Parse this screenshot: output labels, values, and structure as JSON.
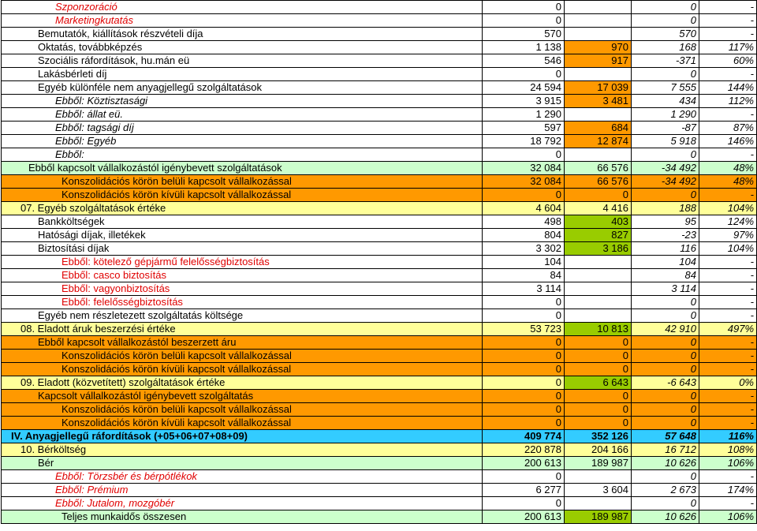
{
  "rows": [
    {
      "label": "Szponzoráció",
      "indent": 68,
      "lc": "red it",
      "rc": "",
      "v1": "0",
      "v2": "",
      "v3": "0",
      "v4": "-",
      "c2": ""
    },
    {
      "label": "Marketingkutatás",
      "indent": 68,
      "lc": "red it",
      "rc": "",
      "v1": "0",
      "v2": "",
      "v3": "0",
      "v4": "-",
      "c2": ""
    },
    {
      "label": "Bemutatók, kiállítások részvételi díja",
      "indent": 46,
      "lc": "",
      "rc": "",
      "v1": "570",
      "v2": "",
      "v3": "570",
      "v4": "-",
      "c2": ""
    },
    {
      "label": "Oktatás, továbbképzés",
      "indent": 46,
      "lc": "",
      "rc": "",
      "v1": "1 138",
      "v2": "970",
      "v3": "168",
      "v4": "117%",
      "c2": "bg-orange"
    },
    {
      "label": "Szociális ráfordítások, hu.mán eü",
      "indent": 46,
      "lc": "",
      "rc": "",
      "v1": "546",
      "v2": "917",
      "v3": "-371",
      "v4": "60%",
      "c2": "bg-orange"
    },
    {
      "label": "Lakásbérleti díj",
      "indent": 46,
      "lc": "",
      "rc": "",
      "v1": "0",
      "v2": "",
      "v3": "0",
      "v4": "-",
      "c2": ""
    },
    {
      "label": "Egyéb különféle nem anyagjellegű szolgáltatások",
      "indent": 46,
      "lc": "",
      "rc": "",
      "v1": "24 594",
      "v2": "17 039",
      "v3": "7 555",
      "v4": "144%",
      "c2": "bg-orange"
    },
    {
      "label": "Ebből: Köztisztasági",
      "indent": 68,
      "lc": "it",
      "rc": "",
      "v1": "3 915",
      "v2": "3 481",
      "v3": "434",
      "v4": "112%",
      "c2": "bg-orange"
    },
    {
      "label": "Ebből: állat eü.",
      "indent": 68,
      "lc": "it",
      "rc": "",
      "v1": "1 290",
      "v2": "",
      "v3": "1 290",
      "v4": "-",
      "c2": ""
    },
    {
      "label": "Ebből: tagsági díj",
      "indent": 68,
      "lc": "it",
      "rc": "",
      "v1": "597",
      "v2": "684",
      "v3": "-87",
      "v4": "87%",
      "c2": "bg-orange"
    },
    {
      "label": "Ebből: Egyéb",
      "indent": 68,
      "lc": "it",
      "rc": "",
      "v1": "18 792",
      "v2": "12 874",
      "v3": "5 918",
      "v4": "146%",
      "c2": "bg-orange"
    },
    {
      "label": "Ebből:",
      "indent": 68,
      "lc": "it",
      "rc": "",
      "v1": "0",
      "v2": "",
      "v3": "0",
      "v4": "-",
      "c2": ""
    },
    {
      "label": "Ebből kapcsolt vállalkozástól igénybevett szolgáltatások",
      "indent": 34,
      "lc": "",
      "rc": "bg-green",
      "v1": "32 084",
      "v2": "66 576",
      "v3": "-34 492",
      "v4": "48%",
      "c2": ""
    },
    {
      "label": "Konszolidációs körön belüli kapcsolt vállalkozással",
      "indent": 76,
      "lc": "",
      "rc": "bg-orange",
      "v1": "32 084",
      "v2": "66 576",
      "v3": "-34 492",
      "v4": "48%",
      "c2": ""
    },
    {
      "label": "Konszolidációs körön kívüli kapcsolt vállalkozással",
      "indent": 76,
      "lc": "",
      "rc": "bg-orange",
      "v1": "0",
      "v2": "0",
      "v3": "0",
      "v4": "-",
      "c2": ""
    },
    {
      "label": "07. Egyéb szolgáltatások értéke",
      "indent": 24,
      "lc": "",
      "rc": "bg-yellow",
      "v1": "4 604",
      "v2": "4 416",
      "v3": "188",
      "v4": "104%",
      "c2": ""
    },
    {
      "label": "Bankköltségek",
      "indent": 46,
      "lc": "",
      "rc": "",
      "v1": "498",
      "v2": "403",
      "v3": "95",
      "v4": "124%",
      "c2": "bg-lime"
    },
    {
      "label": "Hatósági díjak, illetékek",
      "indent": 46,
      "lc": "",
      "rc": "",
      "v1": "804",
      "v2": "827",
      "v3": "-23",
      "v4": "97%",
      "c2": "bg-lime"
    },
    {
      "label": "Biztosítási díjak",
      "indent": 46,
      "lc": "",
      "rc": "",
      "v1": "3 302",
      "v2": "3 186",
      "v3": "116",
      "v4": "104%",
      "c2": "bg-lime"
    },
    {
      "label": "Ebből: kötelező gépjármű felelősségbiztosítás",
      "indent": 76,
      "lc": "red",
      "rc": "",
      "v1": "104",
      "v2": "",
      "v3": "104",
      "v4": "-",
      "c2": ""
    },
    {
      "label": "Ebből: casco biztosítás",
      "indent": 76,
      "lc": "red",
      "rc": "",
      "v1": "84",
      "v2": "",
      "v3": "84",
      "v4": "-",
      "c2": ""
    },
    {
      "label": "Ebből: vagyonbiztosítás",
      "indent": 76,
      "lc": "red",
      "rc": "",
      "v1": "3 114",
      "v2": "",
      "v3": "3 114",
      "v4": "-",
      "c2": ""
    },
    {
      "label": "Ebből: felelősségbiztosítás",
      "indent": 76,
      "lc": "red",
      "rc": "",
      "v1": "0",
      "v2": "",
      "v3": "0",
      "v4": "-",
      "c2": ""
    },
    {
      "label": "Egyéb nem részletezett szolgáltatás költsége",
      "indent": 46,
      "lc": "",
      "rc": "",
      "v1": "0",
      "v2": "",
      "v3": "0",
      "v4": "-",
      "c2": ""
    },
    {
      "label": "08. Eladott áruk beszerzési értéke",
      "indent": 24,
      "lc": "",
      "rc": "bg-yellow",
      "v1": "53 723",
      "v2": "10 813",
      "v3": "42 910",
      "v4": "497%",
      "c2": "bg-lime"
    },
    {
      "label": "Ebből kapcsolt vállalkozástól beszerzett áru",
      "indent": 46,
      "lc": "",
      "rc": "bg-orange",
      "v1": "0",
      "v2": "0",
      "v3": "0",
      "v4": "-",
      "c2": ""
    },
    {
      "label": "Konszolidációs körön belüli kapcsolt vállalkozással",
      "indent": 76,
      "lc": "",
      "rc": "bg-orange",
      "v1": "0",
      "v2": "0",
      "v3": "0",
      "v4": "-",
      "c2": ""
    },
    {
      "label": "Konszolidációs körön kívüli kapcsolt vállalkozással",
      "indent": 76,
      "lc": "",
      "rc": "bg-orange",
      "v1": "0",
      "v2": "0",
      "v3": "0",
      "v4": "-",
      "c2": ""
    },
    {
      "label": "09. Eladott (közvetített) szolgáltatások értéke",
      "indent": 24,
      "lc": "",
      "rc": "bg-yellow",
      "v1": "0",
      "v2": "6 643",
      "v3": "-6 643",
      "v4": "0%",
      "c2": "bg-lime"
    },
    {
      "label": "Kapcsolt vállalkozástól igénybevett szolgáltatás",
      "indent": 46,
      "lc": "",
      "rc": "bg-orange",
      "v1": "0",
      "v2": "0",
      "v3": "0",
      "v4": "-",
      "c2": ""
    },
    {
      "label": "Konszolidációs körön belüli kapcsolt vállalkozással",
      "indent": 76,
      "lc": "",
      "rc": "bg-orange",
      "v1": "0",
      "v2": "0",
      "v3": "0",
      "v4": "-",
      "c2": ""
    },
    {
      "label": "Konszolidációs körön kívüli kapcsolt vállalkozással",
      "indent": 76,
      "lc": "",
      "rc": "bg-orange",
      "v1": "0",
      "v2": "0",
      "v3": "0",
      "v4": "-",
      "c2": ""
    },
    {
      "label": "IV. Anyagjellegű ráfordítások (+05+06+07+08+09)",
      "indent": 12,
      "lc": "",
      "rc": "bg-cyan",
      "v1": "409 774",
      "v2": "352 126",
      "v3": "57 648",
      "v4": "116%",
      "c2": "",
      "bold": true
    },
    {
      "label": "10. Bérköltség",
      "indent": 24,
      "lc": "",
      "rc": "bg-yellow",
      "v1": "220 878",
      "v2": "204 166",
      "v3": "16 712",
      "v4": "108%",
      "c2": ""
    },
    {
      "label": "Bér",
      "indent": 46,
      "lc": "",
      "rc": "bg-green",
      "v1": "200 613",
      "v2": "189 987",
      "v3": "10 626",
      "v4": "106%",
      "c2": ""
    },
    {
      "label": "Ebből: Törzsbér és bérpótlékok",
      "indent": 68,
      "lc": "red it",
      "rc": "",
      "v1": "0",
      "v2": "",
      "v3": "0",
      "v4": "-",
      "c2": ""
    },
    {
      "label": "Ebből: Prémium",
      "indent": 68,
      "lc": "red it",
      "rc": "",
      "v1": "6 277",
      "v2": "3 604",
      "v3": "2 673",
      "v4": "174%",
      "c2": ""
    },
    {
      "label": "Ebből: Jutalom, mozgóbér",
      "indent": 68,
      "lc": "red it",
      "rc": "",
      "v1": "0",
      "v2": "",
      "v3": "0",
      "v4": "-",
      "c2": ""
    },
    {
      "label": "Teljes munkaidős összesen",
      "indent": 76,
      "lc": "",
      "rc": "bg-green",
      "v1": "200 613",
      "v2": "189 987",
      "v3": "10 626",
      "v4": "106%",
      "c2": "bg-lime"
    }
  ]
}
